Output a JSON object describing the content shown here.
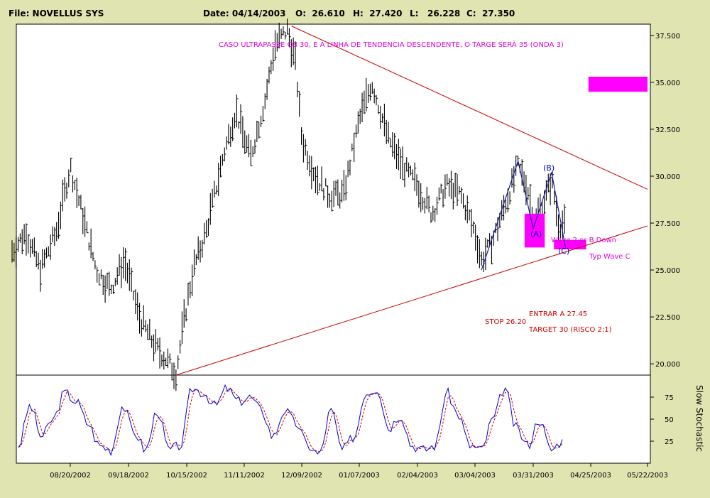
{
  "header": {
    "file": "File: NOVELLUS SYS",
    "date": "Date: 04/14/2003",
    "open": "O:  26.610",
    "high": "H:  27.420",
    "low": "L:   26.228",
    "close": "C:  27.350"
  },
  "chart_data": {
    "type": "bar",
    "title": "",
    "price_axis": {
      "ylim": [
        19.4,
        38.1
      ],
      "ticks": [
        "37.500",
        "35.000",
        "32.500",
        "30.000",
        "27.500",
        "25.000",
        "22.500",
        "20.000"
      ],
      "tick_values": [
        37.5,
        35,
        32.5,
        30,
        27.5,
        25,
        22.5,
        20
      ]
    },
    "date_axis": {
      "ticks": [
        "08/20/2002",
        "09/18/2002",
        "10/15/2002",
        "11/11/2002",
        "12/09/2002",
        "01/07/2003",
        "02/04/2003",
        "03/04/2003",
        "03/31/2003",
        "04/25/2003",
        "05/22/2003"
      ]
    },
    "price_path_keypoints": [
      {
        "date": "07/22/2002",
        "price": 26.0
      },
      {
        "date": "07/29/2002",
        "price": 27.0
      },
      {
        "date": "08/05/2002",
        "price": 25.0
      },
      {
        "date": "08/13/2002",
        "price": 27.0
      },
      {
        "date": "08/20/2002",
        "price": 30.5
      },
      {
        "date": "08/26/2002",
        "price": 28.0
      },
      {
        "date": "09/02/2002",
        "price": 25.0
      },
      {
        "date": "09/09/2002",
        "price": 24.0
      },
      {
        "date": "09/16/2002",
        "price": 25.5
      },
      {
        "date": "09/23/2002",
        "price": 22.5
      },
      {
        "date": "09/30/2002",
        "price": 21.0
      },
      {
        "date": "10/07/2002",
        "price": 20.0
      },
      {
        "date": "10/10/2002",
        "price": 19.5
      },
      {
        "date": "10/14/2002",
        "price": 22.5
      },
      {
        "date": "10/18/2002",
        "price": 25.0
      },
      {
        "date": "10/24/2002",
        "price": 27.0
      },
      {
        "date": "11/01/2002",
        "price": 31.0
      },
      {
        "date": "11/07/2002",
        "price": 33.5
      },
      {
        "date": "11/14/2002",
        "price": 31.0
      },
      {
        "date": "11/21/2002",
        "price": 34.0
      },
      {
        "date": "11/26/2002",
        "price": 37.0
      },
      {
        "date": "12/02/2002",
        "price": 37.8
      },
      {
        "date": "12/06/2002",
        "price": 36.0
      },
      {
        "date": "12/09/2002",
        "price": 32.0
      },
      {
        "date": "12/16/2002",
        "price": 30.0
      },
      {
        "date": "12/23/2002",
        "price": 29.0
      },
      {
        "date": "12/30/2002",
        "price": 29.0
      },
      {
        "date": "01/07/2003",
        "price": 33.0
      },
      {
        "date": "01/13/2003",
        "price": 35.0
      },
      {
        "date": "01/21/2003",
        "price": 32.0
      },
      {
        "date": "01/28/2003",
        "price": 30.5
      },
      {
        "date": "02/04/2003",
        "price": 29.5
      },
      {
        "date": "02/11/2003",
        "price": 28.0
      },
      {
        "date": "02/18/2003",
        "price": 29.5
      },
      {
        "date": "02/25/2003",
        "price": 29.0
      },
      {
        "date": "03/04/2003",
        "price": 27.0
      },
      {
        "date": "03/07/2003",
        "price": 25.5
      },
      {
        "date": "03/12/2003",
        "price": 26.5
      },
      {
        "date": "03/18/2003",
        "price": 28.5
      },
      {
        "date": "03/24/2003",
        "price": 30.5
      },
      {
        "date": "03/28/2003",
        "price": 29.5
      },
      {
        "date": "04/01/2003",
        "price": 27.5
      },
      {
        "date": "04/04/2003",
        "price": 28.5
      },
      {
        "date": "04/08/2003",
        "price": 29.8
      },
      {
        "date": "04/11/2003",
        "price": 27.5
      },
      {
        "date": "04/14/2003",
        "price": 27.35
      }
    ],
    "trendlines": [
      {
        "name": "descending",
        "color": "#cc0000",
        "from": {
          "date": "12/04/2002",
          "price": 38.0
        },
        "to": {
          "date": "05/22/2003",
          "price": 29.3
        }
      },
      {
        "name": "ascending",
        "color": "#cc0000",
        "from": {
          "date": "10/10/2002",
          "price": 19.4
        },
        "to": {
          "date": "05/22/2003",
          "price": 27.35
        }
      }
    ],
    "wave_path": [
      {
        "date": "03/07/2003",
        "price": 25.0
      },
      {
        "date": "03/24/2003",
        "price": 30.8
      },
      {
        "date": "03/31/2003",
        "price": 27.2
      },
      {
        "date": "04/08/2003",
        "price": 30.2
      },
      {
        "date": "04/14/2003",
        "price": 26.2
      }
    ],
    "zones": [
      {
        "color": "#ff00ff",
        "from": {
          "date": "04/24/2003",
          "price": 35.3
        },
        "to": {
          "date": "05/22/2003",
          "price": 34.5
        }
      },
      {
        "color": "#ff00ff",
        "from": {
          "date": "03/27/2003",
          "price": 28.0
        },
        "to": {
          "date": "04/05/2003",
          "price": 26.2
        }
      },
      {
        "color": "#ff00ff",
        "from": {
          "date": "04/09/2003",
          "price": 26.6
        },
        "to": {
          "date": "04/23/2003",
          "price": 26.1
        }
      }
    ],
    "annotations": [
      {
        "text": "CASO ULTRAPASSE OS 30, E A LINHA DE TENDENCIA DESCENDENTE,  O TARGE SERÀ 35 (ONDA 3)",
        "color": "#dd00dd"
      },
      {
        "text": "(A)",
        "color": "#0000cc"
      },
      {
        "text": "(B)",
        "color": "#0000cc"
      },
      {
        "text": "(C)",
        "color": "#0000cc"
      },
      {
        "text": "Wave 2 or B Down",
        "color": "#dd00dd"
      },
      {
        "text": "Typ Wave C",
        "color": "#dd00dd"
      },
      {
        "text": "ENTRAR A 27.45",
        "color": "#cc0000"
      },
      {
        "text": "STOP 26.20",
        "color": "#cc0000"
      },
      {
        "text": "TARGET 30 (RISCO 2:1)",
        "color": "#cc0000"
      }
    ],
    "indicator": {
      "name": "Slow Stochastic",
      "ylim": [
        0,
        100
      ],
      "ticks": [
        "75",
        "50",
        "25"
      ],
      "tick_values": [
        75,
        50,
        25
      ],
      "series": [
        {
          "color": "#0000cc",
          "style": "solid"
        },
        {
          "color": "#cc0000",
          "style": "dashed"
        }
      ],
      "values": [
        20,
        65,
        30,
        50,
        80,
        70,
        45,
        20,
        15,
        65,
        35,
        15,
        60,
        15,
        20,
        85,
        80,
        65,
        85,
        70,
        75,
        60,
        30,
        60,
        45,
        20,
        10,
        60,
        15,
        30,
        80,
        85,
        40,
        55,
        20,
        15,
        20,
        80,
        55,
        20,
        15,
        50,
        85,
        40,
        20,
        50,
        15,
        25
      ]
    }
  }
}
